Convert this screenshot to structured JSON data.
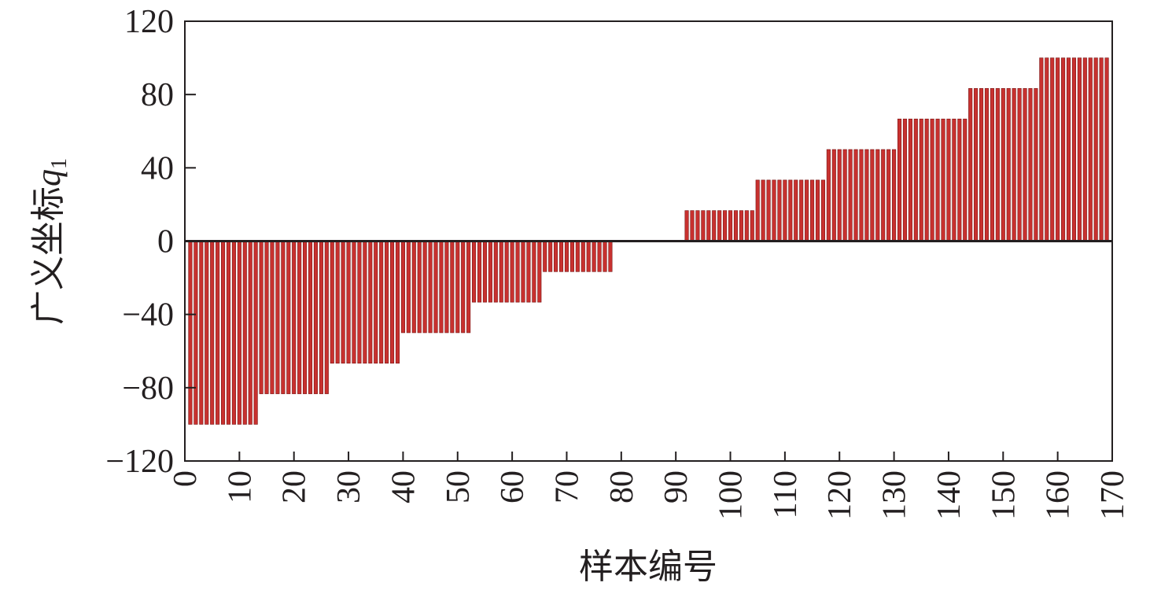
{
  "chart_data": {
    "type": "bar",
    "xlabel": "样本编号",
    "ylabel": "广义坐标",
    "ylabel_symbol": "q",
    "ylabel_subscript": "1",
    "xlim": [
      0,
      170
    ],
    "ylim": [
      -120,
      120
    ],
    "xticks": [
      "0",
      "10",
      "20",
      "30",
      "40",
      "50",
      "60",
      "70",
      "80",
      "90",
      "100",
      "110",
      "120",
      "130",
      "140",
      "150",
      "160",
      "170"
    ],
    "yticks": [
      "120",
      "80",
      "40",
      "0",
      "−40",
      "−80",
      "−120"
    ],
    "grid": false,
    "bar_color": "#c8312f",
    "x": [
      1,
      2,
      3,
      4,
      5,
      6,
      7,
      8,
      9,
      10,
      11,
      12,
      13,
      14,
      15,
      16,
      17,
      18,
      19,
      20,
      21,
      22,
      23,
      24,
      25,
      26,
      27,
      28,
      29,
      30,
      31,
      32,
      33,
      34,
      35,
      36,
      37,
      38,
      39,
      40,
      41,
      42,
      43,
      44,
      45,
      46,
      47,
      48,
      49,
      50,
      51,
      52,
      53,
      54,
      55,
      56,
      57,
      58,
      59,
      60,
      61,
      62,
      63,
      64,
      65,
      66,
      67,
      68,
      69,
      70,
      71,
      72,
      73,
      74,
      75,
      76,
      77,
      78,
      79,
      80,
      81,
      82,
      83,
      84,
      85,
      86,
      87,
      88,
      89,
      90,
      91,
      92,
      93,
      94,
      95,
      96,
      97,
      98,
      99,
      100,
      101,
      102,
      103,
      104,
      105,
      106,
      107,
      108,
      109,
      110,
      111,
      112,
      113,
      114,
      115,
      116,
      117,
      118,
      119,
      120,
      121,
      122,
      123,
      124,
      125,
      126,
      127,
      128,
      129,
      130,
      131,
      132,
      133,
      134,
      135,
      136,
      137,
      138,
      139,
      140,
      141,
      142,
      143,
      144,
      145,
      146,
      147,
      148,
      149,
      150,
      151,
      152,
      153,
      154,
      155,
      156,
      157,
      158,
      159,
      160,
      161,
      162,
      163,
      164,
      165,
      166,
      167,
      168,
      169
    ],
    "values": [
      -100,
      -100,
      -100,
      -100,
      -100,
      -100,
      -100,
      -100,
      -100,
      -100,
      -100,
      -100,
      -100,
      -83.33,
      -83.33,
      -83.33,
      -83.33,
      -83.33,
      -83.33,
      -83.33,
      -83.33,
      -83.33,
      -83.33,
      -83.33,
      -83.33,
      -83.33,
      -66.67,
      -66.67,
      -66.67,
      -66.67,
      -66.67,
      -66.67,
      -66.67,
      -66.67,
      -66.67,
      -66.67,
      -66.67,
      -66.67,
      -66.67,
      -50,
      -50,
      -50,
      -50,
      -50,
      -50,
      -50,
      -50,
      -50,
      -50,
      -50,
      -50,
      -50,
      -33.33,
      -33.33,
      -33.33,
      -33.33,
      -33.33,
      -33.33,
      -33.33,
      -33.33,
      -33.33,
      -33.33,
      -33.33,
      -33.33,
      -33.33,
      -16.67,
      -16.67,
      -16.67,
      -16.67,
      -16.67,
      -16.67,
      -16.67,
      -16.67,
      -16.67,
      -16.67,
      -16.67,
      -16.67,
      -16.67,
      0,
      0,
      0,
      0,
      0,
      0,
      0,
      0,
      0,
      0,
      0,
      0,
      0,
      16.67,
      16.67,
      16.67,
      16.67,
      16.67,
      16.67,
      16.67,
      16.67,
      16.67,
      16.67,
      16.67,
      16.67,
      16.67,
      33.33,
      33.33,
      33.33,
      33.33,
      33.33,
      33.33,
      33.33,
      33.33,
      33.33,
      33.33,
      33.33,
      33.33,
      33.33,
      50,
      50,
      50,
      50,
      50,
      50,
      50,
      50,
      50,
      50,
      50,
      50,
      50,
      66.67,
      66.67,
      66.67,
      66.67,
      66.67,
      66.67,
      66.67,
      66.67,
      66.67,
      66.67,
      66.67,
      66.67,
      66.67,
      83.33,
      83.33,
      83.33,
      83.33,
      83.33,
      83.33,
      83.33,
      83.33,
      83.33,
      83.33,
      83.33,
      83.33,
      83.33,
      100,
      100,
      100,
      100,
      100,
      100,
      100,
      100,
      100,
      100,
      100,
      100,
      100
    ]
  }
}
